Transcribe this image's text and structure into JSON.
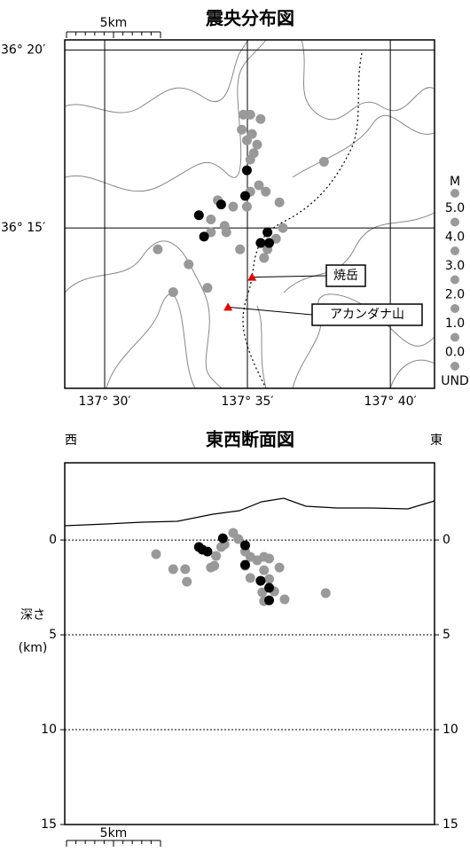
{
  "chart_data": [
    {
      "type": "scatter",
      "title": "震央分布図",
      "scale_label": "5km",
      "xlim": [
        137.4767,
        137.6925
      ],
      "ylim": [
        36.175,
        36.338
      ],
      "xticks": [
        {
          "value": 137.5,
          "label": "137° 30′"
        },
        {
          "value": 137.5833,
          "label": "137° 35′"
        },
        {
          "value": 137.6667,
          "label": "137° 40′"
        }
      ],
      "yticks": [
        {
          "value": 36.25,
          "label": "36° 15′"
        },
        {
          "value": 36.3333,
          "label": "36° 20′"
        }
      ],
      "grid": true,
      "series": [
        {
          "color": "#999999",
          "x": [
            137.581,
            137.585,
            137.591,
            137.58,
            137.586,
            137.583,
            137.589,
            137.587,
            137.585,
            137.59,
            137.594,
            137.585,
            137.566,
            137.575,
            137.583,
            137.562,
            137.57,
            137.571,
            137.562,
            137.602,
            137.604,
            137.6,
            137.595,
            137.593,
            137.579,
            137.549,
            137.531,
            137.54,
            137.56,
            137.628
          ],
          "values": [
            36.303,
            36.303,
            36.301,
            36.296,
            36.294,
            36.291,
            36.289,
            36.285,
            36.282,
            36.27,
            36.267,
            36.267,
            36.263,
            36.26,
            36.26,
            36.254,
            36.251,
            36.248,
            36.248,
            36.262,
            36.25,
            36.245,
            36.24,
            36.236,
            36.24,
            36.233,
            36.24,
            36.22,
            36.222,
            36.281
          ]
        },
        {
          "color": "#000000",
          "x": [
            137.583,
            137.582,
            137.568,
            137.555,
            137.558,
            137.595,
            137.591,
            137.596
          ],
          "values": [
            36.277,
            36.265,
            36.261,
            36.256,
            36.246,
            36.248,
            36.243,
            36.243
          ]
        }
      ],
      "volcanoes": [
        {
          "label": "焼岳",
          "x": 137.586,
          "y": 36.227,
          "color": "#e00000"
        },
        {
          "label": "アカンダナ山",
          "x": 137.572,
          "y": 36.213,
          "color": "#e00000"
        }
      ],
      "legend": {
        "title": "M",
        "labels": [
          "5.0",
          "4.0",
          "3.0",
          "2.0",
          "1.0",
          "0.0",
          "UND"
        ],
        "color": "#999999"
      }
    },
    {
      "type": "scatter",
      "title": "東西断面図",
      "scale_label": "5km",
      "side_labels": [
        "西",
        "東"
      ],
      "ylabel": [
        "深さ",
        "(km)"
      ],
      "xlim": [
        137.4767,
        137.6925
      ],
      "ylim": [
        15,
        -4.07
      ],
      "yticks": [
        0,
        5,
        10,
        15
      ],
      "grid": true,
      "series": [
        {
          "color": "#999999",
          "x": [
            137.53,
            137.54,
            137.548,
            137.547,
            137.562,
            137.564,
            137.565,
            137.57,
            137.575,
            137.578,
            137.582,
            137.585,
            137.582,
            137.585,
            137.589,
            137.593,
            137.596,
            137.593,
            137.602,
            137.596,
            137.592,
            137.599,
            137.605,
            137.593,
            137.629,
            137.568
          ],
          "values": [
            0.75,
            1.54,
            2.2,
            1.54,
            1.45,
            1.36,
            0.84,
            0.23,
            -0.37,
            -0.05,
            0.61,
            0.89,
            1.36,
            2.0,
            1.07,
            0.89,
            0.98,
            1.59,
            1.45,
            2.06,
            2.76,
            2.71,
            3.13,
            3.22,
            2.8,
            0.37
          ]
        },
        {
          "color": "#000000",
          "x": [
            137.555,
            137.557,
            137.56,
            137.569,
            137.582,
            137.582,
            137.591,
            137.596,
            137.596
          ],
          "values": [
            0.37,
            0.51,
            0.61,
            -0.09,
            0.28,
            1.31,
            2.15,
            2.52,
            3.18
          ]
        }
      ]
    }
  ]
}
